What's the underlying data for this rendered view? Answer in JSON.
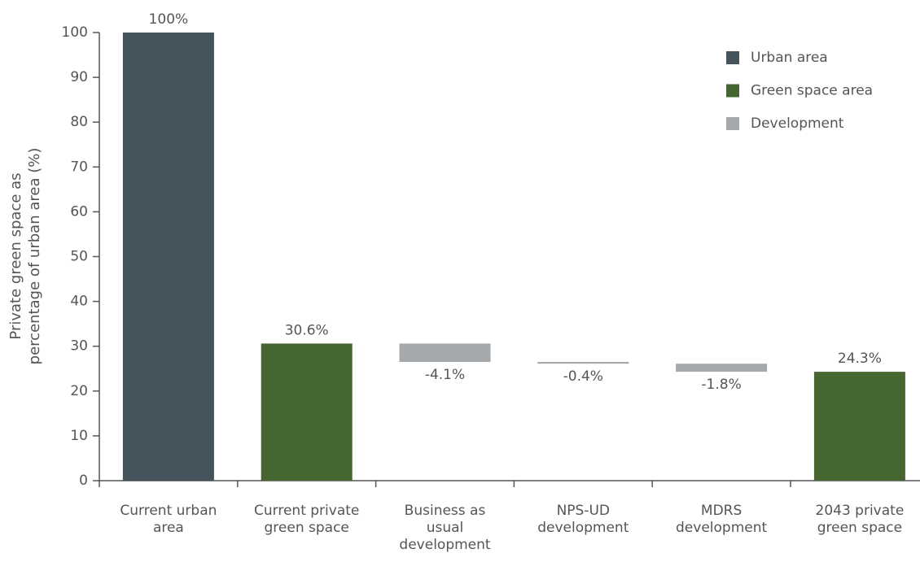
{
  "chart_data": {
    "type": "waterfall",
    "y_axis_label": "Private green space as\npercentage of urban area (%)",
    "categories": [
      "Current urban\narea",
      "Current private\ngreen space",
      "Business as\nusual\ndevelopment",
      "NPS-UD\ndevelopment",
      "MDRS\ndevelopment",
      "2043 private\ngreen space"
    ],
    "series": [
      {
        "name": "Urban area",
        "color": "#45535d",
        "values": [
          100,
          null,
          null,
          null,
          null,
          null
        ],
        "value_labels": [
          "100%",
          null,
          null,
          null,
          null,
          null
        ]
      },
      {
        "name": "Green space area",
        "color": "#466631",
        "values": [
          null,
          30.6,
          null,
          null,
          null,
          24.3
        ],
        "value_labels": [
          null,
          "30.6%",
          null,
          null,
          null,
          "24.3%"
        ]
      },
      {
        "name": "Development",
        "color": "#a6a9ac",
        "floating": true,
        "values": [
          null,
          null,
          -4.1,
          -0.4,
          -1.8,
          null
        ],
        "value_labels": [
          null,
          null,
          "-4.1%",
          "-0.4%",
          "-1.8%",
          null
        ]
      }
    ],
    "ylim": [
      0,
      100
    ],
    "yticks": [
      0,
      10,
      20,
      30,
      40,
      50,
      60,
      70,
      80,
      90,
      100
    ],
    "legend": "upper right"
  }
}
